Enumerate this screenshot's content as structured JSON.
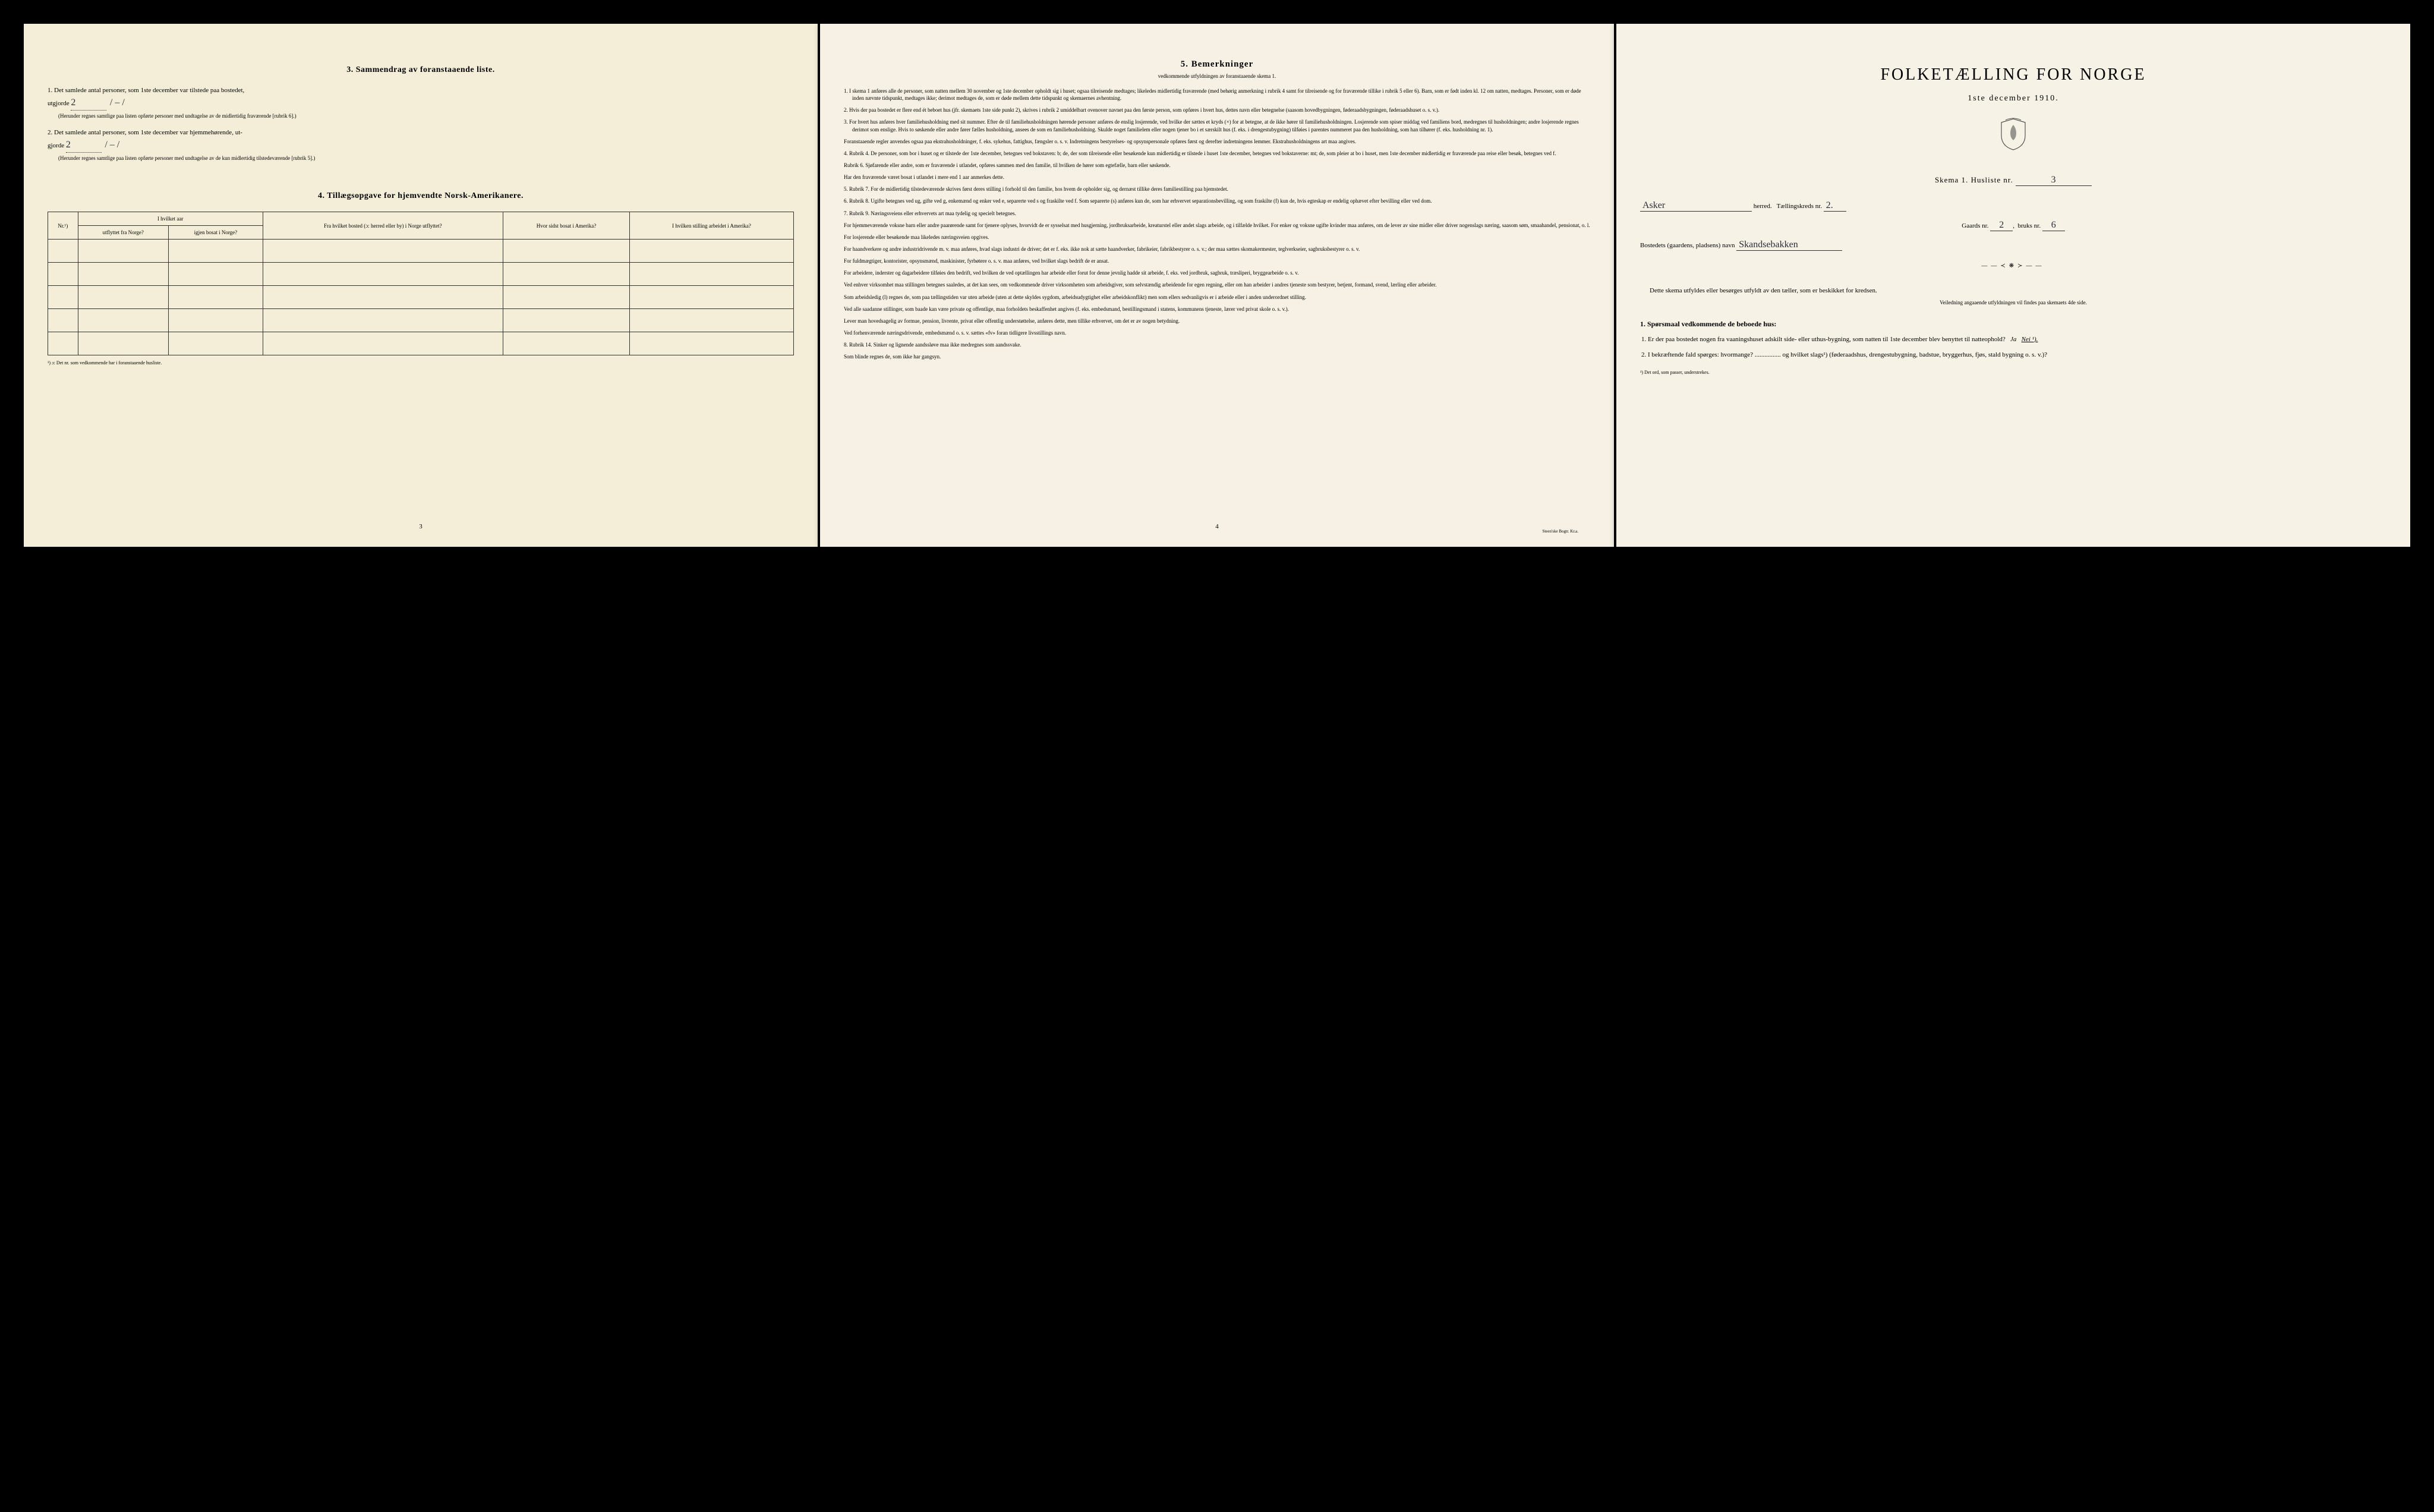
{
  "left": {
    "section3_title": "3.   Sammendrag av foranstaaende liste.",
    "q1": "1.  Det samlede antal personer, som 1ste december var tilstede paa bostedet,",
    "q1_label": "utgjorde",
    "q1_value": "2",
    "q1_dash": "/ – /",
    "q1_sub": "(Herunder regnes samtlige paa listen opførte personer med undtagelse av de midlertidig fraværende [rubrik 6].)",
    "q2": "2.  Det samlede antal personer, som 1ste december var hjemmehørende, ut-",
    "q2_label": "gjorde",
    "q2_value": "2",
    "q2_dash": "/ – /",
    "q2_sub": "(Herunder regnes samtlige paa listen opførte personer med undtagelse av de kun midlertidig tilstedeværende [rubrik 5].)",
    "section4_title": "4.   Tillægsopgave for hjemvendte Norsk-Amerikanere.",
    "table": {
      "h_nr": "Nr.¹)",
      "h_aar": "I hvilket aar",
      "h_aar_sub1": "utflyttet fra Norge?",
      "h_aar_sub2": "igjen bosat i Norge?",
      "h_bosted": "Fra hvilket bosted (ɔ: herred eller by) i Norge utflyttet?",
      "h_sidst": "Hvor sidst bosat i Amerika?",
      "h_stilling": "I hvilken stilling arbeidet i Amerika?"
    },
    "footnote": "¹) ɔ: Det nr. som vedkommende har i foranstaaende husliste.",
    "page_num": "3"
  },
  "middle": {
    "title": "5.  Bemerkninger",
    "subtitle": "vedkommende utfyldningen av foranstaaende skema 1.",
    "items": [
      "1.  I skema 1 anføres alle de personer, som natten mellem 30 november og 1ste december opholdt sig i huset; ogsaa tilreisende medtages; likeledes midlertidig fraværende (med behørig anmerkning i rubrik 4 samt for tilreisende og for fraværende tillike i rubrik 5 eller 6). Barn, som er født inden kl. 12 om natten, medtages. Personer, som er døde inden nævnte tidspunkt, medtages ikke; derimot medtages de, som er døde mellem dette tidspunkt og skemaernes avhentning.",
      "2.  Hvis der paa bostedet er flere end ét beboet hus (jfr. skemaets 1ste side punkt 2), skrives i rubrik 2 umiddelbart ovenover navnet paa den første person, som opføres i hvert hus, dettes navn eller betegnelse (saasom hovedbygningen, føderaadsbygningen, føderaadshuset o. s. v.).",
      "3.  For hvert hus anføres hver familiehusholdning med sit nummer. Efter de til familiehusholdningen hørende personer anføres de enslig losjerende, ved hvilke der sættes et kryds (×) for at betegne, at de ikke hører til familiehusholdningen. Losjerende som spiser middag ved familiens bord, medregnes til husholdningen; andre losjerende regnes derimot som enslige. Hvis to søskende eller andre fører fælles husholdning, ansees de som en familiehusholdning. Skulde noget familielem eller nogen tjener bo i et særskilt hus (f. eks. i drengestubygning) tilføies i parentes nummeret paa den husholdning, som han tilhører (f. eks. husholdning nr. 1).",
      "Foranstaaende regler anvendes ogsaa paa ekstrahusholdninger, f. eks. sykehus, fattighus, fængsler o. s. v. Indretningens bestyrelses- og opsynspersonale opføres først og derefter indretningens lemmer. Ekstrahusholdningens art maa angives.",
      "4.  Rubrik 4. De personer, som bor i huset og er tilstede der 1ste december, betegnes ved bokstaven: b; de, der som tilreisende eller besøkende kun midlertidig er tilstede i huset 1ste december, betegnes ved bokstaverne: mt; de, som pleier at bo i huset, men 1ste december midlertidig er fraværende paa reise eller besøk, betegnes ved f.",
      "Rubrik 6. Sjøfarende eller andre, som er fraværende i utlandet, opføres sammen med den familie, til hvilken de hører som egtefælle, barn eller søskende.",
      "Har den fraværende været bosat i utlandet i mere end 1 aar anmerkes dette.",
      "5.  Rubrik 7. For de midlertidig tilstedeværende skrives først deres stilling i forhold til den familie, hos hvem de opholder sig, og dernæst tillike deres familiestilling paa hjemstedet.",
      "6.  Rubrik 8. Ugifte betegnes ved ug, gifte ved g, enkemænd og enker ved e, separerte ved s og fraskilte ved f. Som separerte (s) anføres kun de, som har erhvervet separationsbevilling, og som fraskilte (f) kun de, hvis egteskap er endelig ophævet efter bevilling eller ved dom.",
      "7.  Rubrik 9. Næringsveiens eller erhvervets art maa tydelig og specielt betegnes.",
      "For hjemmeværende voksne barn eller andre paarørende samt for tjenere oplyses, hvorvidt de er sysselsat med husgjerning, jordbruksarbeide, kreaturstel eller andet slags arbeide, og i tilfælde hvilket. For enker og voksne ugifte kvinder maa anføres, om de lever av sine midler eller driver nogenslags næring, saasom søm, smaahandel, pensionat, o. l.",
      "For losjerende eller besøkende maa likeledes næringsveien opgives.",
      "For haandverkere og andre industridrivende m. v. maa anføres, hvad slags industri de driver; det er f. eks. ikke nok at sætte haandverker, fabrikeier, fabrikbestyrer o. s. v.; der maa sættes skomakermester, teglverkseier, sagbruksbestyrer o. s. v.",
      "For fuldmægtiger, kontorister, opsynsmænd, maskinister, fyrbøtere o. s. v. maa anføres, ved hvilket slags bedrift de er ansat.",
      "For arbeidere, inderster og dagarbeidere tilføies den bedrift, ved hvilken de ved optællingen har arbeide eller forut for denne jevnlig hadde sit arbeide, f. eks. ved jordbruk, sagbruk, træsliperi, bryggearbeide o. s. v.",
      "Ved enhver virksomhet maa stillingen betegnes saaledes, at det kan sees, om vedkommende driver virksomheten som arbeidsgiver, som selvstændig arbeidende for egen regning, eller om han arbeider i andres tjeneste som bestyrer, betjent, formand, svend, lærling eller arbeider.",
      "Som arbeidsledig (l) regnes de, som paa tællingstiden var uten arbeide (uten at dette skyldes sygdom, arbeidsudygtighet eller arbeidskonflikt) men som ellers sedvanligvis er i arbeide eller i anden underordnet stilling.",
      "Ved alle saadanne stillinger, som baade kan være private og offentlige, maa forholdets beskaffenhet angives (f. eks. embedsmand, bestillingsmand i statens, kommunens tjeneste, lærer ved privat skole o. s. v.).",
      "Lever man hovedsagelig av formue, pension, livrente, privat eller offentlig understøttelse, anføres dette, men tillike erhvervet, om det er av nogen betydning.",
      "Ved forhenværende næringsdrivende, embedsmænd o. s. v. sættes «fv» foran tidligere livsstillings navn.",
      "8.  Rubrik 14. Sinker og lignende aandssløve maa ikke medregnes som aandssvake.",
      "Som blinde regnes de, som ikke har gangsyn."
    ],
    "page_num": "4",
    "printer": "Steen'ske Bogtr. Kr.a."
  },
  "right": {
    "title": "FOLKETÆLLING FOR NORGE",
    "date": "1ste december 1910.",
    "skema": "Skema 1.  Husliste nr.",
    "husliste_nr": "3",
    "herred_value": "Asker",
    "herred_label": "herred.",
    "kreds_label": "Tællingskreds nr.",
    "kreds_value": "2.",
    "gaard_label": "Gaards nr.",
    "gaard_value": "2",
    "bruk_label": "bruks nr.",
    "bruk_value": "6",
    "bosted_label": "Bostedets (gaardens, pladsens) navn",
    "bosted_value": "Skandsebakken",
    "intro": "Dette skema utfyldes eller besørges utfyldt av den tæller, som er beskikket for kredsen.",
    "intro_sub": "Veiledning angaaende utfyldningen vil findes paa skemaets 4de side.",
    "q_head": "1. Spørsmaal vedkommende de beboede hus:",
    "q1": "1.  Er der paa bostedet nogen fra vaaningshuset adskilt side- eller uthus-bygning, som natten til 1ste december blev benyttet til natteophold?",
    "q1_ja": "Ja",
    "q1_nei": "Nei ¹).",
    "q2": "2.  I bekræftende fald spørges: hvormange? ................ og hvilket slags¹) (føderaadshus, drengestubygning, badstue, bryggerhus, fjøs, stald bygning o. s. v.)?",
    "note": "¹) Det ord, som passer, understrekes."
  }
}
